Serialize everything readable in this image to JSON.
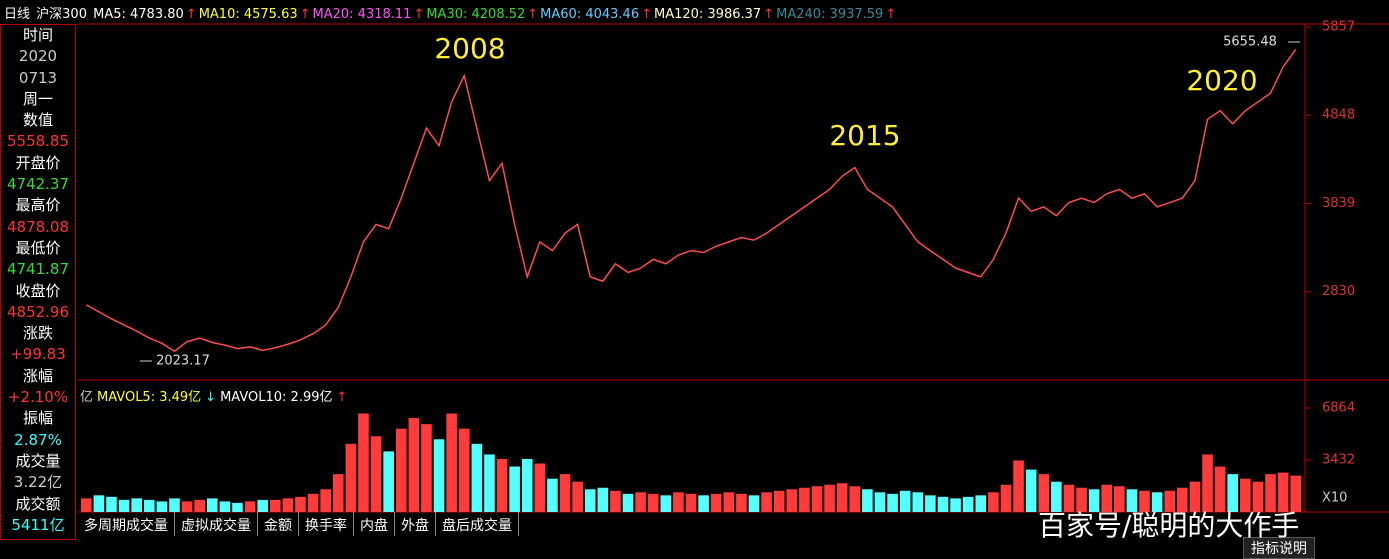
{
  "header": {
    "period": "日线",
    "symbol": "沪深300",
    "indicators": [
      {
        "text": "MA5: 4783.80",
        "arrow": "↑",
        "color": "#ffffff"
      },
      {
        "text": "MA10: 4575.63",
        "arrow": "↑",
        "color": "#ffff33"
      },
      {
        "text": "MA20: 4318.11",
        "arrow": "↑",
        "color": "#ff55ff"
      },
      {
        "text": "MA30: 4208.52",
        "arrow": "↑",
        "color": "#33dd33"
      },
      {
        "text": "MA60: 4043.46",
        "arrow": "↑",
        "color": "#66ccff"
      },
      {
        "text": "MA120: 3986.37",
        "arrow": "↑",
        "color": "#ffffcc"
      },
      {
        "text": "MA240: 3937.59",
        "arrow": "↑",
        "color": "#3a8a9a"
      }
    ]
  },
  "info_panel": {
    "rows": [
      {
        "text": "时间",
        "color": "#ffffff"
      },
      {
        "text": "2020",
        "color": "#cccccc"
      },
      {
        "text": "0713",
        "color": "#cccccc"
      },
      {
        "text": "周一",
        "color": "#ffffff"
      },
      {
        "text": "数值",
        "color": "#ffffff"
      },
      {
        "text": "5558.85",
        "color": "#ff3333"
      },
      {
        "text": "开盘价",
        "color": "#ffffff"
      },
      {
        "text": "4742.37",
        "color": "#33dd33"
      },
      {
        "text": "最高价",
        "color": "#ffffff"
      },
      {
        "text": "4878.08",
        "color": "#ff3333"
      },
      {
        "text": "最低价",
        "color": "#ffffff"
      },
      {
        "text": "4741.87",
        "color": "#33dd33"
      },
      {
        "text": "收盘价",
        "color": "#ffffff"
      },
      {
        "text": "4852.96",
        "color": "#ff3333"
      },
      {
        "text": "涨跌",
        "color": "#ffffff"
      },
      {
        "text": "+99.83",
        "color": "#ff3333"
      },
      {
        "text": "涨幅",
        "color": "#ffffff"
      },
      {
        "text": "+2.10%",
        "color": "#ff3333"
      },
      {
        "text": "振幅",
        "color": "#ffffff"
      },
      {
        "text": "2.87%",
        "color": "#33ffff"
      },
      {
        "text": "成交量",
        "color": "#ffffff"
      },
      {
        "text": "3.22亿",
        "color": "#cccccc"
      },
      {
        "text": "成交额",
        "color": "#ffffff"
      },
      {
        "text": "5411亿",
        "color": "#33ffff"
      }
    ]
  },
  "chart_data": [
    {
      "type": "line",
      "color": "#ff4d4d",
      "ylim": [
        1821,
        5891
      ],
      "yticks": [
        2830,
        3839,
        4848,
        5857
      ],
      "annotations": [
        "2008",
        "2015",
        "2020",
        "5655.48",
        "2023.17"
      ],
      "values": [
        2680,
        2600,
        2520,
        2450,
        2380,
        2300,
        2240,
        2150,
        2260,
        2300,
        2250,
        2220,
        2180,
        2200,
        2160,
        2190,
        2230,
        2280,
        2350,
        2450,
        2650,
        3000,
        3400,
        3600,
        3550,
        3900,
        4300,
        4700,
        4500,
        5000,
        5300,
        4700,
        4100,
        4300,
        3600,
        3000,
        3400,
        3300,
        3500,
        3600,
        3000,
        2950,
        3150,
        3050,
        3100,
        3200,
        3150,
        3250,
        3300,
        3280,
        3350,
        3400,
        3450,
        3420,
        3500,
        3600,
        3700,
        3800,
        3900,
        4000,
        4150,
        4250,
        4000,
        3900,
        3800,
        3600,
        3400,
        3300,
        3200,
        3100,
        3050,
        3000,
        3200,
        3500,
        3900,
        3750,
        3800,
        3700,
        3850,
        3900,
        3850,
        3950,
        4000,
        3900,
        3950,
        3800,
        3850,
        3900,
        4100,
        4800,
        4900,
        4750,
        4900,
        5000,
        5100,
        5400,
        5600
      ]
    },
    {
      "type": "bar",
      "up_color": "#ff3b3b",
      "down_color": "#54ffff",
      "ylim": [
        0,
        7524
      ],
      "yticks": [
        3432,
        6864
      ],
      "unit": "X10",
      "values": [
        900,
        1100,
        1000,
        800,
        900,
        800,
        700,
        900,
        700,
        800,
        900,
        700,
        600,
        700,
        800,
        800,
        900,
        1000,
        1200,
        1500,
        2500,
        4500,
        6500,
        5000,
        4000,
        5500,
        6200,
        5800,
        4800,
        6500,
        5500,
        4500,
        3800,
        3500,
        3000,
        3500,
        3200,
        2200,
        2500,
        2000,
        1500,
        1600,
        1400,
        1200,
        1300,
        1200,
        1100,
        1300,
        1200,
        1100,
        1200,
        1300,
        1200,
        1100,
        1300,
        1400,
        1500,
        1600,
        1700,
        1800,
        1900,
        1700,
        1500,
        1300,
        1200,
        1400,
        1300,
        1100,
        1000,
        900,
        1000,
        1100,
        1300,
        1800,
        3400,
        2800,
        2500,
        2000,
        1800,
        1600,
        1500,
        1800,
        1700,
        1500,
        1400,
        1300,
        1400,
        1600,
        2000,
        3800,
        3000,
        2500,
        2200,
        2000,
        2500,
        2600,
        2400
      ]
    }
  ],
  "volume_header": [
    {
      "text": "亿",
      "color": "#cccccc"
    },
    {
      "text": "MAVOL5: 3.49亿",
      "color": "#ffff33"
    },
    {
      "text": "↓",
      "color": "#33ffff"
    },
    {
      "text": "MAVOL10: 2.99亿",
      "color": "#ffffff"
    },
    {
      "text": "↑",
      "color": "#ff3333"
    }
  ],
  "tabs": [
    "多周期成交量",
    "虚拟成交量",
    "金额",
    "换手率",
    "内盘",
    "外盘",
    "盘后成交量"
  ],
  "help": "指标说明",
  "watermark": "百家号/聪明的大作手"
}
